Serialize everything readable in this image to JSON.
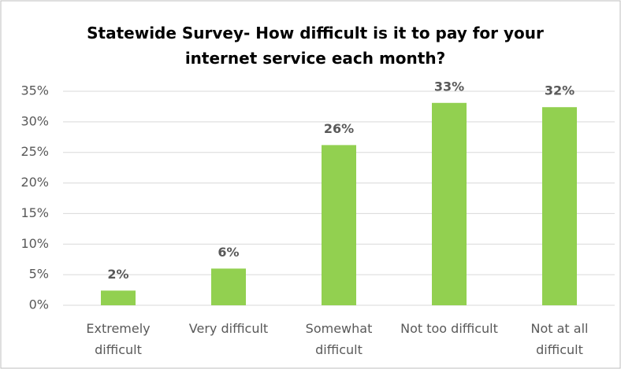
{
  "chart_data": {
    "type": "bar",
    "title": "Statewide Survey- How difficult is it to pay for your internet service each month?",
    "categories": [
      "Extremely difficult",
      "Very difficult",
      "Somewhat difficult",
      "Not too difficult",
      "Not at all difficult"
    ],
    "values": [
      2.4,
      6.0,
      26.2,
      33.1,
      32.4
    ],
    "value_labels": [
      "2%",
      "6%",
      "26%",
      "33%",
      "32%"
    ],
    "color": "#92d050",
    "ylim": [
      0,
      35
    ],
    "yticks": [
      {
        "value": 0,
        "label": "0%"
      },
      {
        "value": 5,
        "label": "5%"
      },
      {
        "value": 10,
        "label": "10%"
      },
      {
        "value": 15,
        "label": "15%"
      },
      {
        "value": 20,
        "label": "20%"
      },
      {
        "value": 25,
        "label": "25%"
      },
      {
        "value": 30,
        "label": "30%"
      },
      {
        "value": 35,
        "label": "35%"
      }
    ],
    "grid": true
  }
}
